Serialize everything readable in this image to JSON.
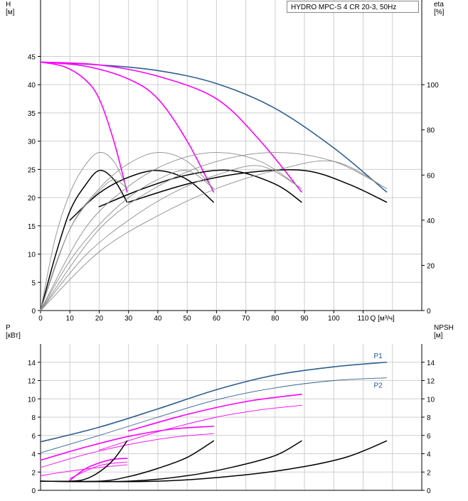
{
  "chart_title": "HYDRO MPC-S 4 CR 20-3, 50Hz",
  "colors": {
    "grid": "#cfcfcf",
    "blue": "#2e5f8f",
    "magenta": "#ff00ff",
    "black": "#000000",
    "gray": "#8c8c8c",
    "label_blue": "#1f4f9f"
  },
  "chart_data": [
    {
      "type": "line",
      "name": "head-efficiency",
      "xlabel": "Q [м³/ч]",
      "ylabel_left": [
        "H",
        "[м]"
      ],
      "ylabel_right": [
        "eta",
        "[%]"
      ],
      "xlim": [
        0,
        130
      ],
      "ylim": [
        0,
        55
      ],
      "y2lim": [
        0,
        137.5
      ],
      "x_ticks": [
        0,
        10,
        20,
        30,
        40,
        50,
        60,
        70,
        80,
        90,
        100,
        110
      ],
      "x_tick_labels": [
        "0",
        "10",
        "20",
        "30",
        "40",
        "50",
        "60",
        "70",
        "80",
        "90",
        "100",
        "110"
      ],
      "y_ticks": [
        0,
        5,
        10,
        15,
        20,
        25,
        30,
        35,
        40,
        45
      ],
      "y_tick_labels": [
        "0",
        "5",
        "10",
        "15",
        "20",
        "25",
        "30",
        "35",
        "40",
        "45"
      ],
      "y2_ticks": [
        0,
        20,
        40,
        60,
        80,
        100
      ],
      "y2_tick_labels": [
        "0",
        "20",
        "40",
        "60",
        "80",
        "100"
      ],
      "grid": true,
      "series": [
        {
          "group": "head",
          "color": "blue",
          "width": 1.6,
          "points": [
            [
              0,
              44
            ],
            [
              20,
              43.5
            ],
            [
              40,
              42.5
            ],
            [
              60,
              40.2
            ],
            [
              80,
              35.8
            ],
            [
              100,
              28.8
            ],
            [
              118,
              21
            ]
          ]
        },
        {
          "group": "head",
          "color": "magenta",
          "width": 1.6,
          "points": [
            [
              0,
              44
            ],
            [
              8,
              43.2
            ],
            [
              15,
              41
            ],
            [
              20,
              37.5
            ],
            [
              25,
              30
            ],
            [
              29.5,
              21
            ]
          ]
        },
        {
          "group": "head",
          "color": "magenta",
          "width": 1.6,
          "points": [
            [
              0,
              44
            ],
            [
              15,
              43.3
            ],
            [
              30,
              41
            ],
            [
              40,
              37.5
            ],
            [
              50,
              30
            ],
            [
              59,
              21
            ]
          ]
        },
        {
          "group": "head",
          "color": "magenta",
          "width": 1.6,
          "points": [
            [
              0,
              44
            ],
            [
              20,
              43.5
            ],
            [
              40,
              41.5
            ],
            [
              60,
              37.5
            ],
            [
              75,
              30
            ],
            [
              89,
              21
            ]
          ]
        },
        {
          "group": "eta",
          "color": "black",
          "width": 1.5,
          "points": [
            [
              0,
              0
            ],
            [
              5,
              24
            ],
            [
              10,
              44
            ],
            [
              15,
              55
            ],
            [
              20,
              62
            ],
            [
              25,
              58
            ],
            [
              29.5,
              48
            ]
          ]
        },
        {
          "group": "eta",
          "color": "black",
          "width": 1.5,
          "points": [
            [
              10,
              40
            ],
            [
              20,
              52
            ],
            [
              30,
              59
            ],
            [
              40,
              62
            ],
            [
              50,
              58
            ],
            [
              59,
              48
            ]
          ]
        },
        {
          "group": "eta",
          "color": "black",
          "width": 1.5,
          "points": [
            [
              20,
              46
            ],
            [
              35,
              54
            ],
            [
              50,
              60
            ],
            [
              65,
              62
            ],
            [
              80,
              56
            ],
            [
              89,
              48
            ]
          ]
        },
        {
          "group": "eta",
          "color": "black",
          "width": 1.5,
          "points": [
            [
              30,
              48
            ],
            [
              50,
              56
            ],
            [
              70,
              61
            ],
            [
              90,
              62
            ],
            [
              105,
              56
            ],
            [
              118,
              48
            ]
          ]
        },
        {
          "group": "eta",
          "color": "gray",
          "width": 0.9,
          "points": [
            [
              0,
              0
            ],
            [
              5,
              32
            ],
            [
              10,
              52
            ],
            [
              15,
              64
            ],
            [
              20,
              70
            ],
            [
              25,
              66
            ],
            [
              29.5,
              54
            ]
          ]
        },
        {
          "group": "eta",
          "color": "gray",
          "width": 0.9,
          "points": [
            [
              0,
              0
            ],
            [
              10,
              36
            ],
            [
              20,
              54
            ],
            [
              30,
              65
            ],
            [
              40,
              70
            ],
            [
              50,
              66
            ],
            [
              59,
              54
            ]
          ]
        },
        {
          "group": "eta",
          "color": "gray",
          "width": 0.9,
          "points": [
            [
              0,
              0
            ],
            [
              15,
              36
            ],
            [
              30,
              55
            ],
            [
              45,
              66
            ],
            [
              60,
              70
            ],
            [
              75,
              66
            ],
            [
              89,
              54
            ]
          ]
        },
        {
          "group": "eta",
          "color": "gray",
          "width": 0.9,
          "points": [
            [
              0,
              0
            ],
            [
              20,
              36
            ],
            [
              40,
              55
            ],
            [
              60,
              66
            ],
            [
              80,
              70
            ],
            [
              100,
              66
            ],
            [
              118,
              54
            ]
          ]
        },
        {
          "group": "eta",
          "color": "gray",
          "width": 0.9,
          "points": [
            [
              0,
              0
            ],
            [
              5,
              20
            ],
            [
              10,
              36
            ],
            [
              15,
              46
            ],
            [
              20,
              53
            ],
            [
              25,
              58
            ],
            [
              29.5,
              54
            ]
          ]
        },
        {
          "group": "eta",
          "color": "gray",
          "width": 0.9,
          "points": [
            [
              0,
              0
            ],
            [
              10,
              22
            ],
            [
              20,
              38
            ],
            [
              30,
              50
            ],
            [
              40,
              58
            ],
            [
              50,
              62
            ],
            [
              59,
              54
            ]
          ]
        },
        {
          "group": "eta",
          "color": "gray",
          "width": 0.9,
          "points": [
            [
              0,
              0
            ],
            [
              15,
              24
            ],
            [
              30,
              40
            ],
            [
              45,
              52
            ],
            [
              60,
              60
            ],
            [
              75,
              64
            ],
            [
              89,
              54
            ]
          ]
        },
        {
          "group": "eta",
          "color": "gray",
          "width": 0.9,
          "points": [
            [
              0,
              0
            ],
            [
              20,
              26
            ],
            [
              40,
              42
            ],
            [
              60,
              54
            ],
            [
              80,
              62
            ],
            [
              100,
              66
            ],
            [
              118,
              54
            ]
          ]
        }
      ]
    },
    {
      "type": "line",
      "name": "power-npsh",
      "ylabel_left": [
        "P",
        "[кВт]"
      ],
      "ylabel_right": [
        "NPSH",
        "[м]"
      ],
      "xlim": [
        0,
        130
      ],
      "ylim": [
        0,
        16
      ],
      "y2lim": [
        0,
        16
      ],
      "y_ticks": [
        0,
        2,
        4,
        6,
        8,
        10,
        12,
        14
      ],
      "y_tick_labels": [
        "0",
        "2",
        "4",
        "6",
        "8",
        "10",
        "12",
        "14"
      ],
      "y2_ticks": [
        0,
        2,
        4,
        6,
        8,
        10,
        12,
        14
      ],
      "y2_tick_labels": [
        "0",
        "2",
        "4",
        "6",
        "8",
        "10",
        "12",
        "14"
      ],
      "grid": true,
      "series": [
        {
          "group": "P1",
          "label": "P1",
          "color": "blue",
          "width": 1.6,
          "points": [
            [
              0,
              5.3
            ],
            [
              20,
              6.9
            ],
            [
              40,
              8.9
            ],
            [
              60,
              11
            ],
            [
              80,
              12.6
            ],
            [
              100,
              13.5
            ],
            [
              118,
              14
            ]
          ]
        },
        {
          "group": "P2",
          "label": "P2",
          "color": "blue",
          "width": 0.9,
          "points": [
            [
              0,
              4.1
            ],
            [
              20,
              6
            ],
            [
              40,
              8
            ],
            [
              60,
              9.9
            ],
            [
              80,
              11.2
            ],
            [
              100,
              12
            ],
            [
              118,
              12.3
            ]
          ]
        },
        {
          "group": "P",
          "color": "magenta",
          "width": 1.6,
          "points": [
            [
              10,
              1.1
            ],
            [
              15,
              2.3
            ],
            [
              20,
              3
            ],
            [
              25,
              3.4
            ],
            [
              29.5,
              3.5
            ]
          ]
        },
        {
          "group": "P",
          "color": "magenta",
          "width": 1.6,
          "points": [
            [
              0,
              3.3
            ],
            [
              15,
              4.7
            ],
            [
              30,
              5.9
            ],
            [
              45,
              6.7
            ],
            [
              59,
              7
            ]
          ]
        },
        {
          "group": "P",
          "color": "magenta",
          "width": 1.6,
          "points": [
            [
              30,
              6.5
            ],
            [
              50,
              8.3
            ],
            [
              70,
              9.7
            ],
            [
              89,
              10.5
            ]
          ]
        },
        {
          "group": "P",
          "color": "magenta",
          "width": 0.9,
          "points": [
            [
              10,
              1.3
            ],
            [
              20,
              2.7
            ],
            [
              29.5,
              3.1
            ]
          ]
        },
        {
          "group": "P",
          "color": "magenta",
          "width": 0.9,
          "points": [
            [
              0,
              2.5
            ],
            [
              15,
              3.9
            ],
            [
              30,
              5
            ],
            [
              45,
              5.8
            ],
            [
              59,
              6.2
            ]
          ]
        },
        {
          "group": "P",
          "color": "magenta",
          "width": 0.9,
          "points": [
            [
              20,
              4.4
            ],
            [
              40,
              6.4
            ],
            [
              60,
              8
            ],
            [
              75,
              8.8
            ],
            [
              89,
              9.3
            ]
          ]
        },
        {
          "group": "P",
          "color": "magenta",
          "width": 0.9,
          "points": [
            [
              0,
              1.6
            ],
            [
              10,
              2.1
            ],
            [
              20,
              2.5
            ],
            [
              29.5,
              2.8
            ]
          ]
        },
        {
          "group": "NPSH",
          "color": "black",
          "width": 1.5,
          "points": [
            [
              0,
              1
            ],
            [
              10,
              1
            ],
            [
              15,
              1.2
            ],
            [
              20,
              2
            ],
            [
              25,
              3.4
            ],
            [
              29.5,
              5.4
            ]
          ]
        },
        {
          "group": "NPSH",
          "color": "black",
          "width": 1.5,
          "points": [
            [
              0,
              1
            ],
            [
              20,
              1
            ],
            [
              30,
              1.5
            ],
            [
              40,
              2.4
            ],
            [
              50,
              3.6
            ],
            [
              59,
              5.4
            ]
          ]
        },
        {
          "group": "NPSH",
          "color": "black",
          "width": 1.5,
          "points": [
            [
              0,
              1
            ],
            [
              30,
              1
            ],
            [
              50,
              1.6
            ],
            [
              65,
              2.5
            ],
            [
              80,
              3.8
            ],
            [
              89,
              5.4
            ]
          ]
        },
        {
          "group": "NPSH",
          "color": "black",
          "width": 1.5,
          "points": [
            [
              0,
              1
            ],
            [
              40,
              1
            ],
            [
              70,
              1.7
            ],
            [
              90,
              2.6
            ],
            [
              105,
              3.7
            ],
            [
              118,
              5.4
            ]
          ]
        }
      ]
    }
  ]
}
